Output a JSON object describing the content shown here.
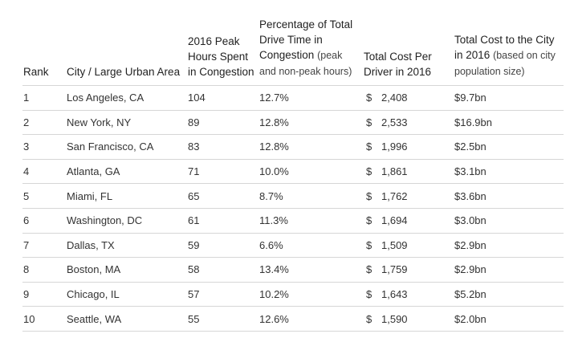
{
  "table": {
    "headers": {
      "rank": "Rank",
      "city": "City / Large Urban Area",
      "peak_hours": "2016 Peak Hours Spent in Congestion",
      "pct_main": "Percentage of Total Drive Time in Congestion",
      "pct_note": "(peak and non-peak hours)",
      "cost_driver": "Total Cost Per Driver in 2016",
      "cost_city_main": "Total Cost to the City in 2016",
      "cost_city_note": "(based on city population size)"
    },
    "currency_symbol": "$",
    "rows": [
      {
        "rank": "1",
        "city": "Los Angeles, CA",
        "hours": "104",
        "pct": "12.7%",
        "cost_driver": "2,408",
        "cost_city": "$9.7bn"
      },
      {
        "rank": "2",
        "city": "New York, NY",
        "hours": "89",
        "pct": "12.8%",
        "cost_driver": "2,533",
        "cost_city": "$16.9bn"
      },
      {
        "rank": "3",
        "city": "San Francisco, CA",
        "hours": "83",
        "pct": "12.8%",
        "cost_driver": "1,996",
        "cost_city": "$2.5bn"
      },
      {
        "rank": "4",
        "city": "Atlanta, GA",
        "hours": "71",
        "pct": "10.0%",
        "cost_driver": "1,861",
        "cost_city": "$3.1bn"
      },
      {
        "rank": "5",
        "city": "Miami, FL",
        "hours": "65",
        "pct": "8.7%",
        "cost_driver": "1,762",
        "cost_city": "$3.6bn"
      },
      {
        "rank": "6",
        "city": "Washington, DC",
        "hours": "61",
        "pct": "11.3%",
        "cost_driver": "1,694",
        "cost_city": "$3.0bn"
      },
      {
        "rank": "7",
        "city": "Dallas, TX",
        "hours": "59",
        "pct": "6.6%",
        "cost_driver": "1,509",
        "cost_city": "$2.9bn"
      },
      {
        "rank": "8",
        "city": "Boston, MA",
        "hours": "58",
        "pct": "13.4%",
        "cost_driver": "1,759",
        "cost_city": "$2.9bn"
      },
      {
        "rank": "9",
        "city": "Chicago, IL",
        "hours": "57",
        "pct": "10.2%",
        "cost_driver": "1,643",
        "cost_city": "$5.2bn"
      },
      {
        "rank": "10",
        "city": "Seattle, WA",
        "hours": "55",
        "pct": "12.6%",
        "cost_driver": "1,590",
        "cost_city": "$2.0bn"
      }
    ]
  }
}
